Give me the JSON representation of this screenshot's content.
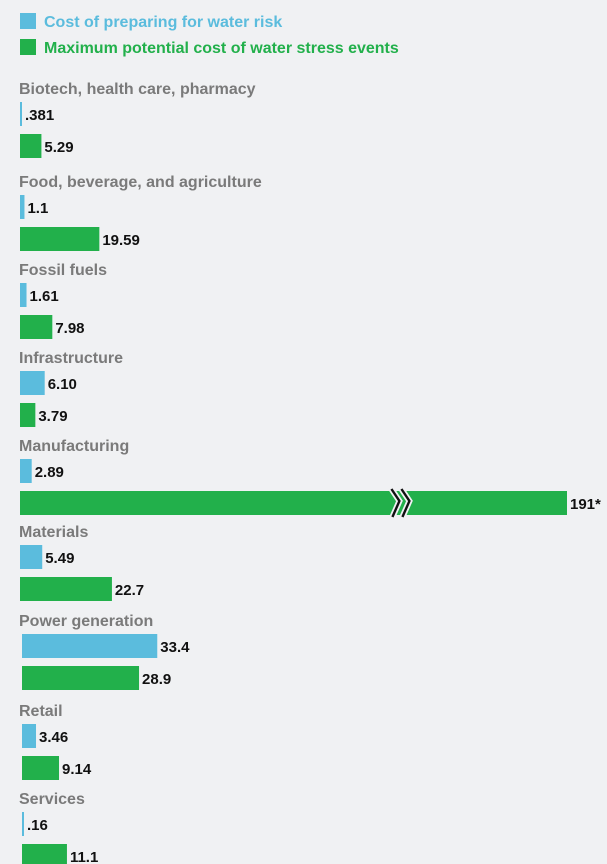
{
  "colors": {
    "prep": "#5bbcdd",
    "max": "#22b04b",
    "category_text": "#7a7a7a",
    "value_text": "#111111",
    "background": "#f0f1f3"
  },
  "legend": [
    {
      "name": "Cost of preparing for water risk",
      "color": "#5bbcdd"
    },
    {
      "name": "Maximum potential cost of water stress events",
      "color": "#22b04b"
    }
  ],
  "chart_data": {
    "type": "bar",
    "orientation": "horizontal",
    "categories": [
      "Biotech, health care, pharmacy",
      "Food, beverage, and agriculture",
      "Fossil fuels",
      "Infrastructure",
      "Manufacturing",
      "Materials",
      "Power generation",
      "Retail",
      "Services"
    ],
    "series": [
      {
        "name": "Cost of preparing for water risk",
        "values": [
          0.381,
          1.1,
          1.61,
          6.1,
          2.89,
          5.49,
          33.4,
          3.46,
          0.16
        ],
        "labels": [
          ".381",
          "1.1",
          "1.61",
          "6.10",
          "2.89",
          "5.49",
          "33.4",
          "3.46",
          ".16"
        ]
      },
      {
        "name": "Maximum potential cost of water stress events",
        "values": [
          5.29,
          19.59,
          7.98,
          3.79,
          191,
          22.7,
          28.9,
          9.14,
          11.1
        ],
        "labels": [
          "5.29",
          "19.59",
          "7.98",
          "3.79",
          "191*",
          "22.7",
          "28.9",
          "9.14",
          "11.1"
        ]
      }
    ],
    "axis_break": {
      "category": "Manufacturing",
      "series": "Maximum potential cost of water stress events"
    },
    "legend_position": "top-left",
    "grid": false
  }
}
